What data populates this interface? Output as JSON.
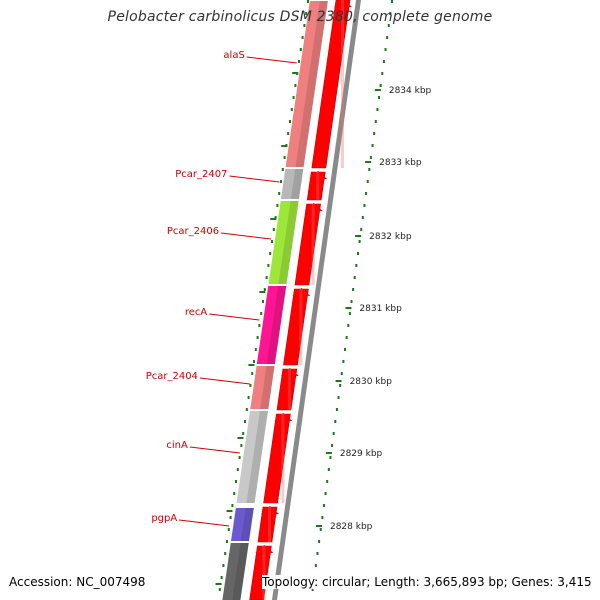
{
  "title": "Pelobacter carbinolicus DSM 2380, complete genome",
  "footer": {
    "accession": "Accession: NC_007498",
    "summary": "Topology: circular; Length: 3,665,893 bp; Genes: 3,415"
  },
  "colors": {
    "cds_forward": "#ff0000",
    "ruler_tick": "#1a7a1a",
    "backbone": "#8a8a8a",
    "label_red": "#d00000"
  },
  "genes": [
    {
      "name": "alaS",
      "color": "#f08080"
    },
    {
      "name": "Pcar_2407",
      "color": "#b8b8b8"
    },
    {
      "name": "Pcar_2406",
      "color": "#9ee63a"
    },
    {
      "name": "recA",
      "color": "#ff1493"
    },
    {
      "name": "Pcar_2404",
      "color": "#f08080"
    },
    {
      "name": "cinA",
      "color": "#c8c8c8"
    },
    {
      "name": "pgpA",
      "color": "#6a5acd"
    },
    {
      "name": "",
      "color": "#666666"
    }
  ],
  "ruler": [
    {
      "label": "2834 kbp"
    },
    {
      "label": "2833 kbp"
    },
    {
      "label": "2832 kbp"
    },
    {
      "label": "2831 kbp"
    },
    {
      "label": "2830 kbp"
    },
    {
      "label": "2829 kbp"
    },
    {
      "label": "2828 kbp"
    }
  ]
}
